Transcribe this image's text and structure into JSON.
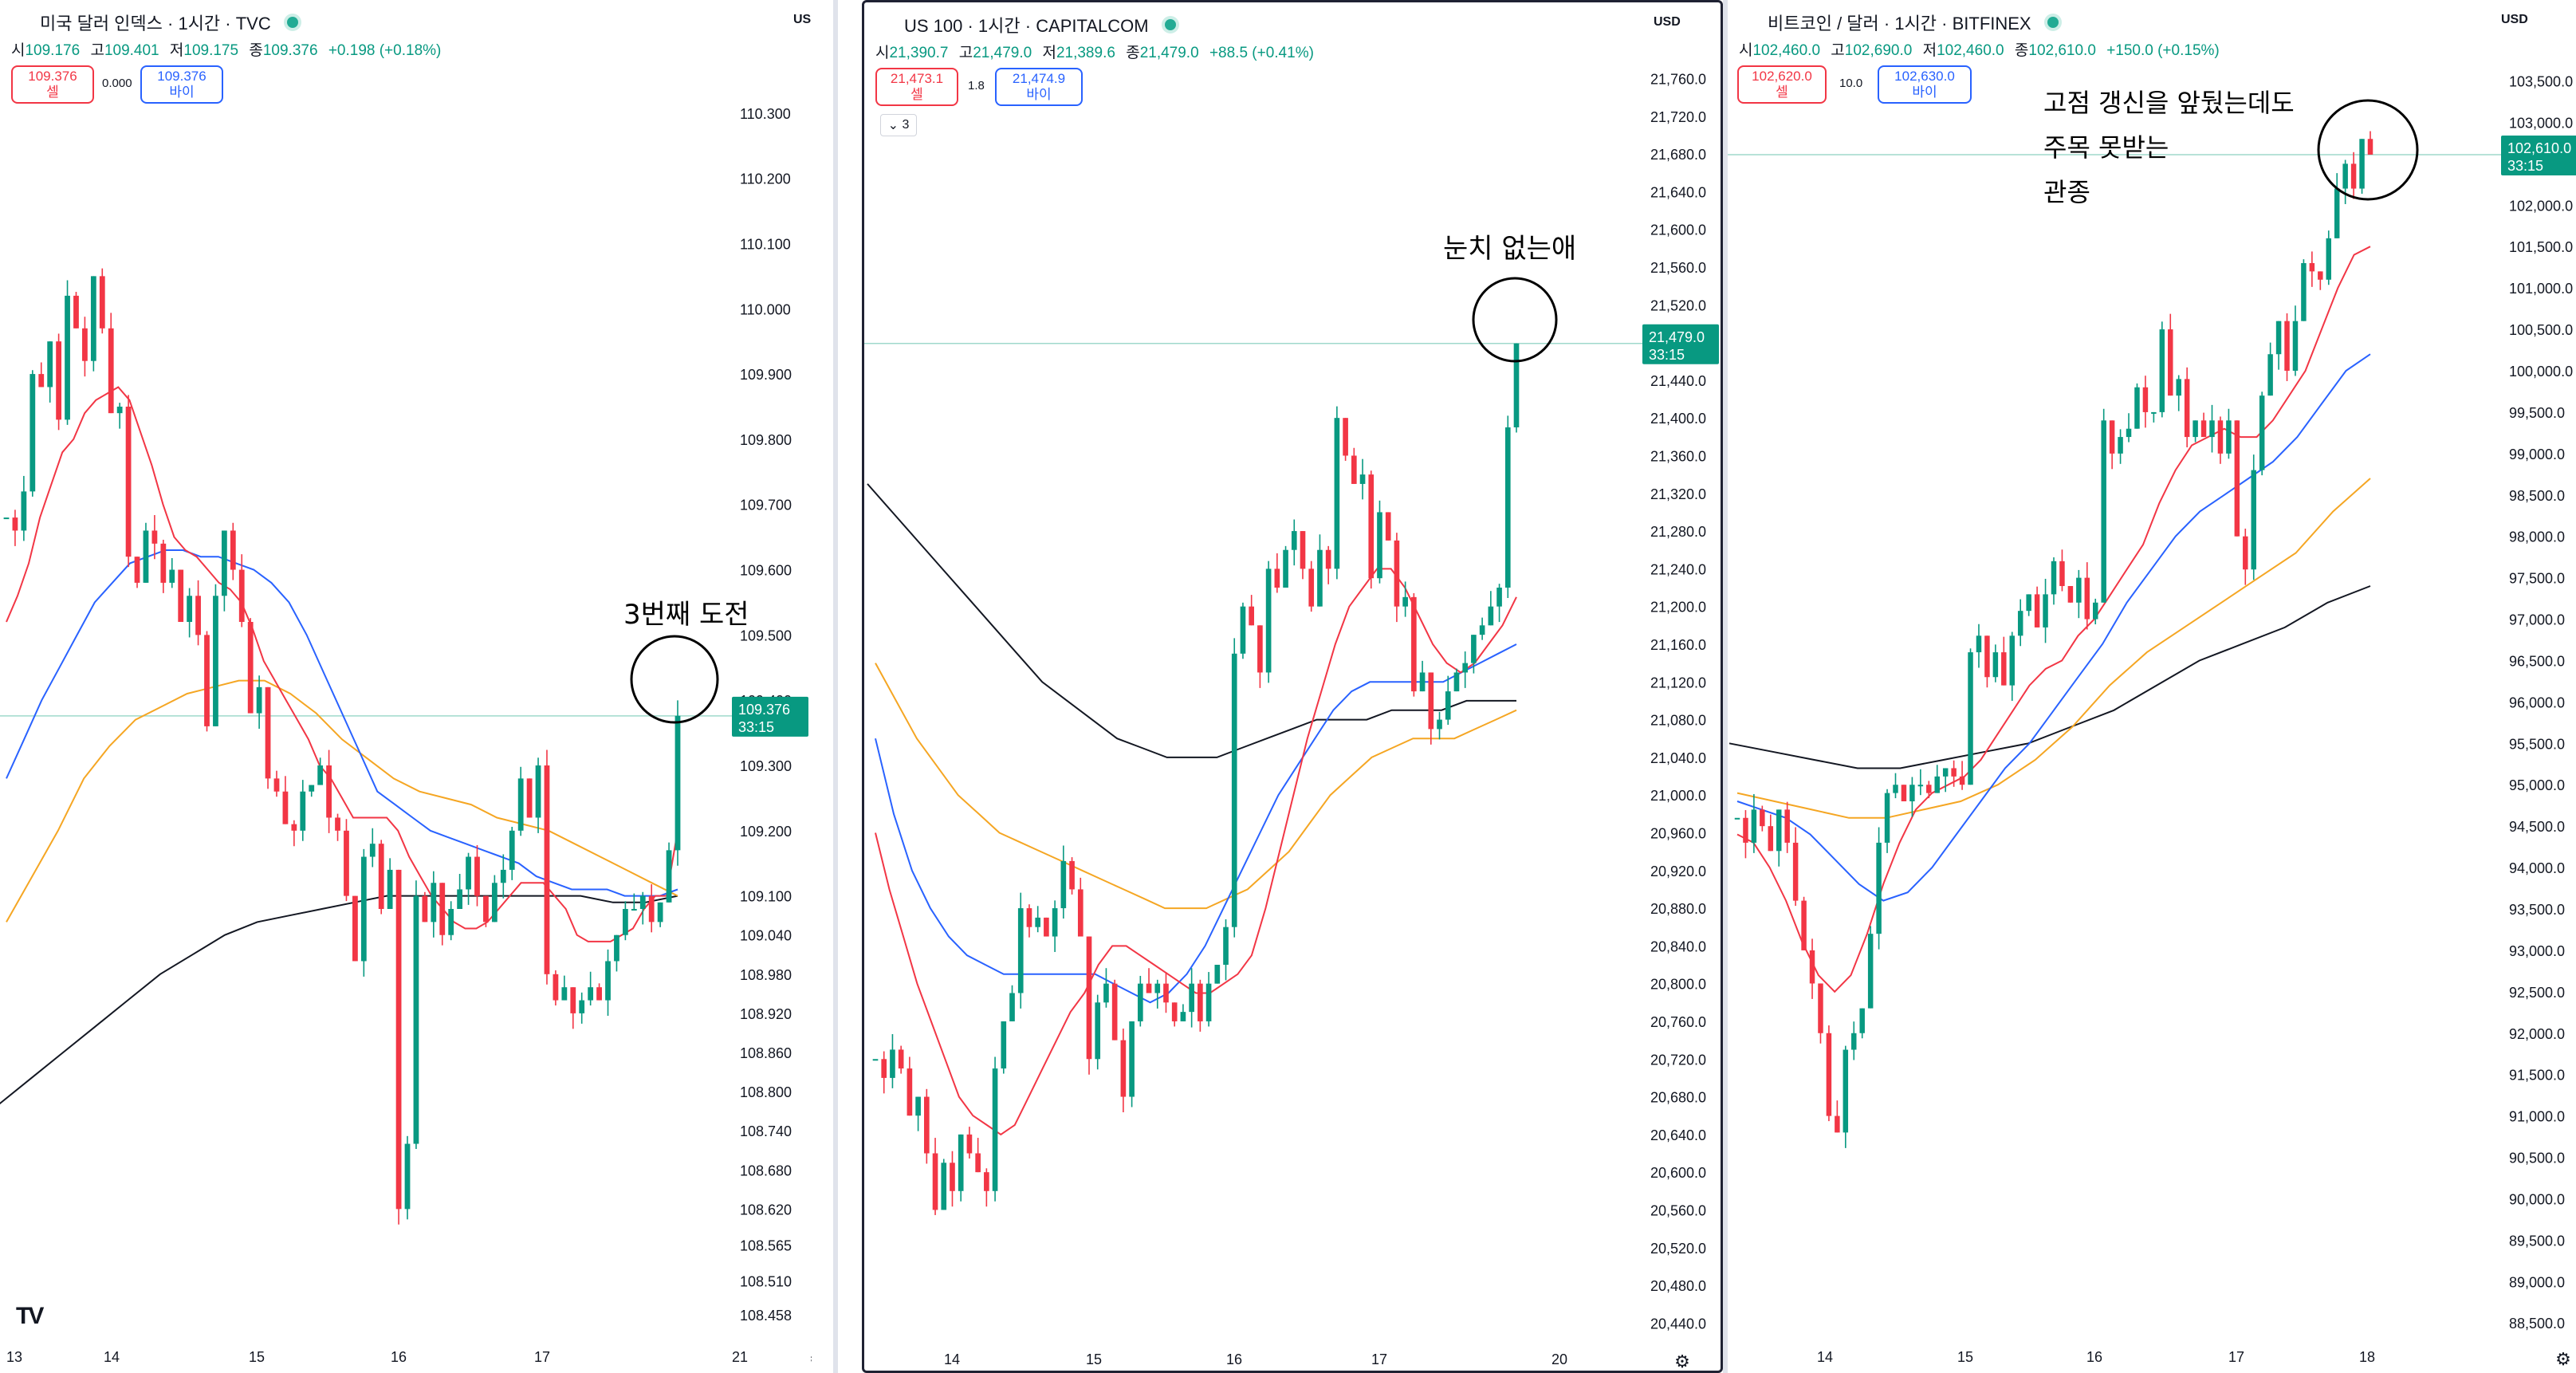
{
  "panels": [
    {
      "id": "dxy",
      "title": "미국 달러 인덱스 · 1시간 · TVC",
      "symbol_badge": "S",
      "symbol_color": "#089981",
      "ohlc": [
        [
          "시",
          "109.176"
        ],
        [
          "고",
          "109.401"
        ],
        [
          "저",
          "109.175"
        ],
        [
          "종",
          "109.376"
        ]
      ],
      "change": "+0.198 (+0.18%)",
      "sell": {
        "price": "109.376",
        "label": "셀"
      },
      "spread": "0.000",
      "buy": {
        "price": "109.376",
        "label": "바이"
      },
      "currency": "USD",
      "price_tag": {
        "value": "109.376",
        "countdown": "33:15"
      },
      "annotation": "3번째 도전",
      "chart_data": {
        "type": "candlestick",
        "ylim": [
          108.42,
          110.4
        ],
        "yticks": [
          "110.300",
          "110.200",
          "110.100",
          "110.000",
          "109.900",
          "109.800",
          "109.700",
          "109.600",
          "109.500",
          "109.400",
          "109.300",
          "109.200",
          "109.100",
          "109.040",
          "108.980",
          "108.920",
          "108.860",
          "108.800",
          "108.740",
          "108.680",
          "108.620",
          "108.565",
          "108.510",
          "108.458"
        ],
        "ytick_values": [
          110.3,
          110.2,
          110.1,
          110.0,
          109.9,
          109.8,
          109.7,
          109.6,
          109.5,
          109.4,
          109.3,
          109.2,
          109.1,
          109.04,
          108.98,
          108.92,
          108.86,
          108.8,
          108.74,
          108.68,
          108.62,
          108.565,
          108.51,
          108.458
        ],
        "xticks": [
          "13",
          "14",
          "15",
          "16",
          "17",
          "21"
        ],
        "last_price": 109.376,
        "price_line": 109.376,
        "close": [
          109.68,
          109.66,
          109.72,
          109.9,
          109.88,
          109.95,
          109.83,
          110.02,
          109.97,
          109.92,
          110.05,
          109.97,
          109.84,
          109.85,
          109.62,
          109.58,
          109.66,
          109.64,
          109.58,
          109.6,
          109.52,
          109.56,
          109.5,
          109.36,
          109.56,
          109.66,
          109.6,
          109.52,
          109.38,
          109.42,
          109.28,
          109.26,
          109.21,
          109.2,
          109.26,
          109.27,
          109.3,
          109.22,
          109.2,
          109.1,
          109.0,
          109.16,
          109.18,
          109.08,
          109.14,
          108.62,
          108.72,
          109.1,
          109.06,
          109.12,
          109.04,
          109.08,
          109.11,
          109.16,
          109.1,
          109.06,
          109.12,
          109.14,
          109.2,
          109.28,
          109.22,
          109.3,
          108.98,
          108.94,
          108.96,
          108.92,
          108.94,
          108.96,
          108.94,
          109.0,
          109.04,
          109.08,
          109.08,
          109.1,
          109.06,
          109.09,
          109.17,
          109.376
        ],
        "ma_red": [
          109.52,
          109.56,
          109.61,
          109.68,
          109.73,
          109.78,
          109.8,
          109.84,
          109.86,
          109.87,
          109.88,
          109.86,
          109.81,
          109.76,
          109.7,
          109.65,
          109.63,
          109.62,
          109.6,
          109.58,
          109.57,
          109.55,
          109.51,
          109.46,
          109.43,
          109.4,
          109.37,
          109.34,
          109.3,
          109.28,
          109.25,
          109.22,
          109.22,
          109.22,
          109.22,
          109.2,
          109.16,
          109.13,
          109.1,
          109.08,
          109.06,
          109.05,
          109.05,
          109.06,
          109.08,
          109.1,
          109.12,
          109.12,
          109.12,
          109.1,
          109.08,
          109.04,
          109.03,
          109.03,
          109.03,
          109.04,
          109.05,
          109.08,
          109.1,
          109.1,
          109.2
        ],
        "ma_blue": [
          109.28,
          109.34,
          109.4,
          109.45,
          109.5,
          109.55,
          109.58,
          109.61,
          109.62,
          109.63,
          109.63,
          109.62,
          109.62,
          109.61,
          109.6,
          109.58,
          109.55,
          109.5,
          109.44,
          109.38,
          109.32,
          109.26,
          109.24,
          109.22,
          109.2,
          109.19,
          109.18,
          109.17,
          109.16,
          109.15,
          109.13,
          109.12,
          109.11,
          109.11,
          109.11,
          109.1,
          109.1,
          109.1,
          109.11
        ],
        "ma_orange": [
          109.06,
          109.13,
          109.2,
          109.28,
          109.33,
          109.37,
          109.39,
          109.41,
          109.42,
          109.43,
          109.43,
          109.41,
          109.38,
          109.34,
          109.31,
          109.28,
          109.26,
          109.25,
          109.24,
          109.22,
          109.21,
          109.2,
          109.18,
          109.16,
          109.14,
          109.12,
          109.1
        ],
        "ma_black": [
          108.78,
          108.82,
          108.86,
          108.9,
          108.94,
          108.98,
          109.01,
          109.04,
          109.06,
          109.07,
          109.08,
          109.09,
          109.1,
          109.1,
          109.1,
          109.1,
          109.1,
          109.1,
          109.1,
          109.09,
          109.09,
          109.1
        ]
      }
    },
    {
      "id": "us100",
      "title": "US 100 · 1시간 · CAPITALCOM",
      "symbol_badge": "100",
      "symbol_color": "#089981",
      "ohlc": [
        [
          "시",
          "21,390.7"
        ],
        [
          "고",
          "21,479.0"
        ],
        [
          "저",
          "21,389.6"
        ],
        [
          "종",
          "21,479.0"
        ]
      ],
      "change": "+88.5 (+0.41%)",
      "sell": {
        "price": "21,473.1",
        "label": "셀"
      },
      "spread": "1.8",
      "buy": {
        "price": "21,474.9",
        "label": "바이"
      },
      "currency": "USD",
      "collapse_label": "3",
      "price_tag": {
        "value": "21,479.0",
        "countdown": "33:15"
      },
      "annotation": "눈치 없는애",
      "chart_data": {
        "type": "candlestick",
        "ylim": [
          20420,
          21790
        ],
        "yticks": [
          "21,760.0",
          "21,720.0",
          "21,680.0",
          "21,640.0",
          "21,600.0",
          "21,560.0",
          "21,520.0",
          "21,480.0",
          "21,440.0",
          "21,400.0",
          "21,360.0",
          "21,320.0",
          "21,280.0",
          "21,240.0",
          "21,200.0",
          "21,160.0",
          "21,120.0",
          "21,080.0",
          "21,040.0",
          "21,000.0",
          "20,960.0",
          "20,920.0",
          "20,880.0",
          "20,840.0",
          "20,800.0",
          "20,760.0",
          "20,720.0",
          "20,680.0",
          "20,640.0",
          "20,600.0",
          "20,560.0",
          "20,520.0",
          "20,480.0",
          "20,440.0"
        ],
        "ytick_values": [
          21760,
          21720,
          21680,
          21640,
          21600,
          21560,
          21520,
          21480,
          21440,
          21400,
          21360,
          21320,
          21280,
          21240,
          21200,
          21160,
          21120,
          21080,
          21040,
          21000,
          20960,
          20920,
          20880,
          20840,
          20800,
          20760,
          20720,
          20680,
          20640,
          20600,
          20560,
          20520,
          20480,
          20440
        ],
        "xticks": [
          "14",
          "15",
          "16",
          "17",
          "20"
        ],
        "last_price": 21479.0,
        "price_line": 21479.0,
        "close": [
          20720,
          20700,
          20730,
          20710,
          20660,
          20680,
          20620,
          20560,
          20610,
          20580,
          20640,
          20620,
          20600,
          20580,
          20710,
          20760,
          20790,
          20880,
          20860,
          20870,
          20850,
          20880,
          20930,
          20900,
          20850,
          20720,
          20780,
          20800,
          20740,
          20680,
          20760,
          20800,
          20790,
          20800,
          20780,
          20760,
          20770,
          20800,
          20760,
          20800,
          20820,
          20860,
          21150,
          21200,
          21180,
          21130,
          21240,
          21220,
          21260,
          21280,
          21240,
          21200,
          21260,
          21240,
          21400,
          21360,
          21330,
          21340,
          21230,
          21300,
          21270,
          21200,
          21210,
          21110,
          21130,
          21070,
          21080,
          21110,
          21130,
          21140,
          21170,
          21180,
          21200,
          21220,
          21390,
          21479
        ],
        "ma_red": [
          20960,
          20900,
          20850,
          20800,
          20760,
          20720,
          20680,
          20660,
          20650,
          20640,
          20650,
          20680,
          20710,
          20740,
          20770,
          20790,
          20820,
          20840,
          20840,
          20830,
          20820,
          20810,
          20800,
          20790,
          20790,
          20800,
          20810,
          20830,
          20880,
          20940,
          21000,
          21060,
          21110,
          21160,
          21200,
          21220,
          21240,
          21240,
          21220,
          21190,
          21160,
          21140,
          21130,
          21140,
          21160,
          21180,
          21210
        ],
        "ma_blue": [
          21060,
          20980,
          20920,
          20880,
          20850,
          20830,
          20820,
          20810,
          20810,
          20810,
          20810,
          20810,
          20810,
          20800,
          20790,
          20780,
          20790,
          20810,
          20840,
          20880,
          20920,
          20960,
          21000,
          21030,
          21060,
          21090,
          21110,
          21120,
          21120,
          21120,
          21120,
          21120,
          21130,
          21140,
          21150,
          21160
        ],
        "ma_orange": [
          21140,
          21100,
          21060,
          21030,
          21000,
          20980,
          20960,
          20950,
          20940,
          20930,
          20920,
          20910,
          20900,
          20890,
          20880,
          20880,
          20880,
          20890,
          20900,
          20920,
          20940,
          20970,
          21000,
          21020,
          21040,
          21050,
          21060,
          21060,
          21060,
          21070,
          21080,
          21090
        ],
        "ma_black": [
          21330,
          21300,
          21270,
          21240,
          21210,
          21180,
          21150,
          21120,
          21100,
          21080,
          21060,
          21050,
          21040,
          21040,
          21040,
          21050,
          21060,
          21070,
          21080,
          21080,
          21080,
          21090,
          21090,
          21090,
          21100,
          21100,
          21100
        ]
      }
    },
    {
      "id": "btc",
      "title": "비트코인 / 달러 · 1시간 · BITFINEX",
      "symbol_badge": "₿",
      "symbol_color": "#f7931a",
      "ohlc": [
        [
          "시",
          "102,460.0"
        ],
        [
          "고",
          "102,690.0"
        ],
        [
          "저",
          "102,460.0"
        ],
        [
          "종",
          "102,610.0"
        ]
      ],
      "change": "+150.0 (+0.15%)",
      "sell": {
        "price": "102,620.0",
        "label": "셀"
      },
      "spread": "10.0",
      "buy": {
        "price": "102,630.0",
        "label": "바이"
      },
      "currency": "USD",
      "price_tag": {
        "value": "102,610.0",
        "countdown": "33:15"
      },
      "annotation_lines": [
        "고점 갱신을 앞뒀는데도",
        "주목 못받는",
        "관종"
      ],
      "chart_data": {
        "type": "candlestick",
        "ylim": [
          88300,
          103900
        ],
        "yticks": [
          "103,500.0",
          "103,000.0",
          "102,500.0",
          "102,000.0",
          "101,500.0",
          "101,000.0",
          "100,500.0",
          "100,000.0",
          "99,500.0",
          "99,000.0",
          "98,500.0",
          "98,000.0",
          "97,500.0",
          "97,000.0",
          "96,500.0",
          "96,000.0",
          "95,500.0",
          "95,000.0",
          "94,500.0",
          "94,000.0",
          "93,500.0",
          "93,000.0",
          "92,500.0",
          "92,000.0",
          "91,500.0",
          "91,000.0",
          "90,500.0",
          "90,000.0",
          "89,500.0",
          "89,000.0",
          "88,500.0"
        ],
        "ytick_values": [
          103500,
          103000,
          102500,
          102000,
          101500,
          101000,
          100500,
          100000,
          99500,
          99000,
          98500,
          98000,
          97500,
          97000,
          96500,
          96000,
          95500,
          95000,
          94500,
          94000,
          93500,
          93000,
          92500,
          92000,
          91500,
          91000,
          90500,
          90000,
          89500,
          89000,
          88500
        ],
        "xticks": [
          "14",
          "15",
          "16",
          "17",
          "18"
        ],
        "last_price": 102610.0,
        "price_line": 102610.0,
        "close": [
          94600,
          94300,
          94700,
          94500,
          94200,
          94700,
          94300,
          93600,
          93000,
          92600,
          92000,
          91000,
          90800,
          91800,
          92000,
          92300,
          93200,
          94300,
          94900,
          95000,
          94800,
          95000,
          95000,
          94900,
          95100,
          95200,
          95100,
          95000,
          96600,
          96800,
          96300,
          96600,
          96200,
          96800,
          97100,
          97300,
          96900,
          97300,
          97700,
          97400,
          97200,
          97500,
          97000,
          97200,
          99400,
          99000,
          99200,
          99300,
          99800,
          99500,
          99500,
          100500,
          99700,
          99900,
          99200,
          99400,
          99200,
          99400,
          99000,
          99400,
          98000,
          97600,
          98800,
          99700,
          100200,
          100600,
          100000,
          100600,
          101300,
          101200,
          101100,
          101600,
          102200,
          102500,
          102200,
          102800,
          102610
        ],
        "ma_red": [
          94400,
          94300,
          94000,
          93600,
          93100,
          92700,
          92500,
          92700,
          93200,
          93800,
          94300,
          94700,
          94900,
          95000,
          95100,
          95300,
          95600,
          95900,
          96200,
          96400,
          96500,
          96800,
          97000,
          97300,
          97600,
          97900,
          98400,
          98800,
          99100,
          99200,
          99300,
          99200,
          99200,
          99400,
          99700,
          100000,
          100500,
          101000,
          101400,
          101500
        ],
        "ma_blue": [
          94800,
          94700,
          94600,
          94400,
          94100,
          93800,
          93600,
          93700,
          94000,
          94400,
          94800,
          95200,
          95500,
          95900,
          96300,
          96700,
          97200,
          97600,
          98000,
          98300,
          98500,
          98700,
          98900,
          99200,
          99600,
          100000,
          100200
        ],
        "ma_orange": [
          94900,
          94800,
          94700,
          94600,
          94600,
          94700,
          94800,
          95000,
          95300,
          95700,
          96200,
          96600,
          96900,
          97200,
          97500,
          97800,
          98300,
          98700
        ],
        "ma_black": [
          95500,
          95400,
          95300,
          95200,
          95200,
          95300,
          95400,
          95500,
          95700,
          95900,
          96200,
          96500,
          96700,
          96900,
          97200,
          97400
        ]
      }
    }
  ]
}
